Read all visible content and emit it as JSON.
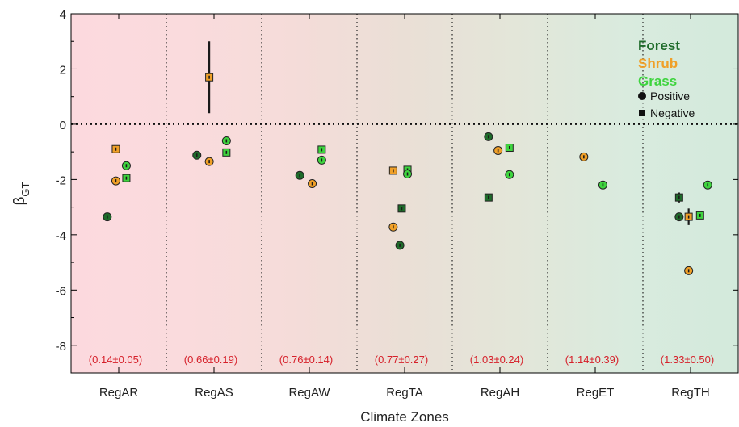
{
  "chart_data": {
    "type": "scatter",
    "title": "",
    "xlabel": "Climate Zones",
    "ylabel_main": "β",
    "ylabel_sub": "GT",
    "ylim": [
      -9,
      4
    ],
    "yticks": [
      4,
      2,
      0,
      -2,
      -4,
      -6,
      -8
    ],
    "grid": false,
    "reference_line_y": 0,
    "categories": [
      "RegAR",
      "RegAS",
      "RegAW",
      "RegTA",
      "RegAH",
      "RegET",
      "RegTH"
    ],
    "zone_annotations": [
      "(0.14±0.05)",
      "(0.66±0.19)",
      "(0.76±0.14)",
      "(0.77±0.27)",
      "(1.03±0.24)",
      "(1.14±0.39)",
      "(1.33±0.50)"
    ],
    "background_colors": [
      "#fcd9de",
      "#fadbdd",
      "#f5dcd9",
      "#eadfd6",
      "#e3e6d9",
      "#d9ebde",
      "#d3eadc"
    ],
    "legend": {
      "position": "top-right",
      "series_labels": [
        {
          "label": "Forest",
          "color": "#1e6b2a"
        },
        {
          "label": "Shrub",
          "color": "#f0a028"
        },
        {
          "label": "Grass",
          "color": "#3ed43e"
        }
      ],
      "marker_labels": [
        {
          "label": "Positive",
          "marker": "circle"
        },
        {
          "label": "Negative",
          "marker": "square"
        }
      ]
    },
    "series": [
      {
        "name": "Forest",
        "color": "#1e6b2a",
        "points": [
          {
            "cat": 0,
            "offset": -0.12,
            "y": -3.35,
            "marker": "circle",
            "err": 0.1
          },
          {
            "cat": 1,
            "offset": -0.18,
            "y": -1.12,
            "marker": "circle",
            "err": 0.1
          },
          {
            "cat": 2,
            "offset": -0.1,
            "y": -1.85,
            "marker": "circle",
            "err": 0.12
          },
          {
            "cat": 3,
            "offset": -0.03,
            "y": -3.05,
            "marker": "square",
            "err": 0.08
          },
          {
            "cat": 3,
            "offset": -0.05,
            "y": -4.38,
            "marker": "circle",
            "err": 0.05
          },
          {
            "cat": 4,
            "offset": -0.12,
            "y": -0.45,
            "marker": "circle",
            "err": 0.05
          },
          {
            "cat": 4,
            "offset": -0.12,
            "y": -2.65,
            "marker": "square",
            "err": 0.1
          },
          {
            "cat": 6,
            "offset": -0.12,
            "y": -2.65,
            "marker": "square",
            "err": 0.18
          },
          {
            "cat": 6,
            "offset": -0.12,
            "y": -3.35,
            "marker": "circle",
            "err": 0.1
          }
        ]
      },
      {
        "name": "Shrub",
        "color": "#f0a028",
        "points": [
          {
            "cat": 0,
            "offset": -0.03,
            "y": -0.9,
            "marker": "square",
            "err": 0.05
          },
          {
            "cat": 0,
            "offset": -0.03,
            "y": -2.05,
            "marker": "circle",
            "err": 0.12
          },
          {
            "cat": 1,
            "offset": -0.05,
            "y": 1.7,
            "marker": "square",
            "err": 1.3
          },
          {
            "cat": 1,
            "offset": -0.05,
            "y": -1.35,
            "marker": "circle",
            "err": 0.06
          },
          {
            "cat": 2,
            "offset": 0.03,
            "y": -2.15,
            "marker": "circle",
            "err": 0.05
          },
          {
            "cat": 3,
            "offset": -0.12,
            "y": -1.68,
            "marker": "square",
            "err": 0.1
          },
          {
            "cat": 3,
            "offset": -0.12,
            "y": -3.72,
            "marker": "circle",
            "err": 0.12
          },
          {
            "cat": 4,
            "offset": -0.02,
            "y": -0.95,
            "marker": "circle",
            "err": 0.05
          },
          {
            "cat": 5,
            "offset": -0.12,
            "y": -1.18,
            "marker": "circle",
            "err": 0.04
          },
          {
            "cat": 6,
            "offset": -0.02,
            "y": -3.35,
            "marker": "square",
            "err": 0.3
          },
          {
            "cat": 6,
            "offset": -0.02,
            "y": -5.3,
            "marker": "circle",
            "err": 0.1
          }
        ]
      },
      {
        "name": "Grass",
        "color": "#3ed43e",
        "points": [
          {
            "cat": 0,
            "offset": 0.08,
            "y": -1.5,
            "marker": "circle",
            "err": 0.1
          },
          {
            "cat": 0,
            "offset": 0.08,
            "y": -1.95,
            "marker": "square",
            "err": 0.06
          },
          {
            "cat": 1,
            "offset": 0.13,
            "y": -0.6,
            "marker": "circle",
            "err": 0.1
          },
          {
            "cat": 1,
            "offset": 0.13,
            "y": -1.02,
            "marker": "square",
            "err": 0.1
          },
          {
            "cat": 2,
            "offset": 0.13,
            "y": -0.92,
            "marker": "square",
            "err": 0.08
          },
          {
            "cat": 2,
            "offset": 0.13,
            "y": -1.3,
            "marker": "circle",
            "err": 0.12
          },
          {
            "cat": 3,
            "offset": 0.03,
            "y": -1.65,
            "marker": "square",
            "err": 0.12
          },
          {
            "cat": 3,
            "offset": 0.03,
            "y": -1.8,
            "marker": "circle",
            "err": 0.15
          },
          {
            "cat": 4,
            "offset": 0.1,
            "y": -0.85,
            "marker": "square",
            "err": 0.05
          },
          {
            "cat": 4,
            "offset": 0.1,
            "y": -1.82,
            "marker": "circle",
            "err": 0.05
          },
          {
            "cat": 5,
            "offset": 0.08,
            "y": -2.2,
            "marker": "circle",
            "err": 0.05
          },
          {
            "cat": 6,
            "offset": 0.18,
            "y": -2.2,
            "marker": "circle",
            "err": 0.1
          },
          {
            "cat": 6,
            "offset": 0.1,
            "y": -3.3,
            "marker": "square",
            "err": 0.05
          }
        ]
      }
    ]
  }
}
